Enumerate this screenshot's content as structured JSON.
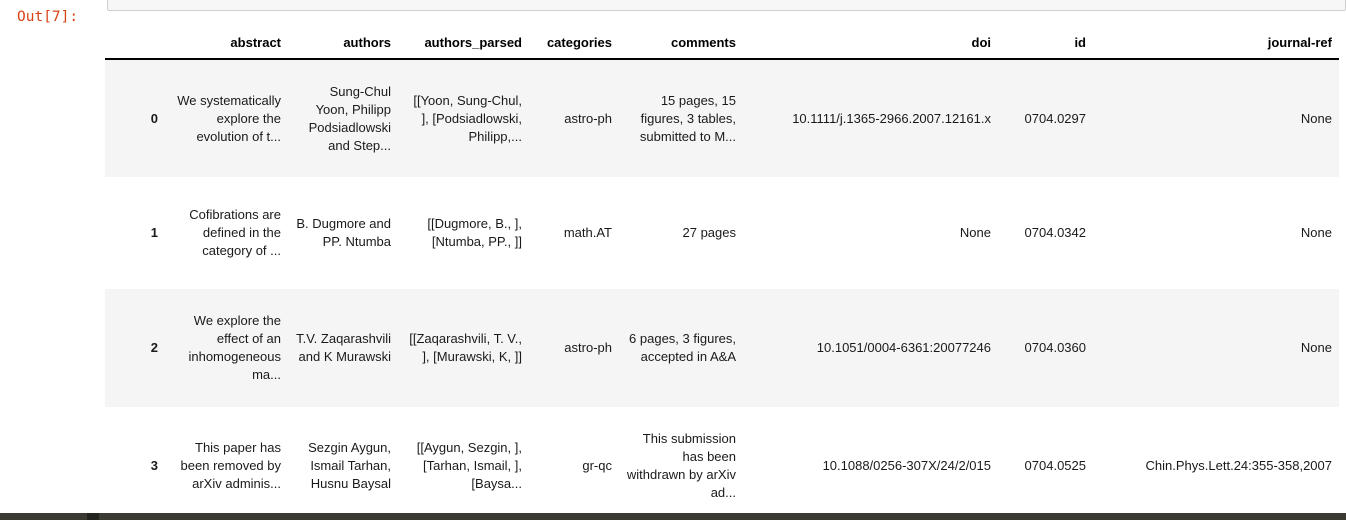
{
  "output_prompt": "Out[7]:",
  "table": {
    "columns": [
      "",
      "abstract",
      "authors",
      "authors_parsed",
      "categories",
      "comments",
      "doi",
      "id",
      "journal-ref"
    ],
    "rows": [
      {
        "index": "0",
        "abstract": "We systematically explore the evolution of t...",
        "authors": "Sung-Chul Yoon, Philipp Podsiadlowski and Step...",
        "authors_parsed": "[[Yoon, Sung-Chul, ], [Podsiadlowski, Philipp,...",
        "categories": "astro-ph",
        "comments": "15 pages, 15 figures, 3 tables, submitted to M...",
        "doi": "10.1111/j.1365-2966.2007.12161.x",
        "id": "0704.0297",
        "journal_ref": "None"
      },
      {
        "index": "1",
        "abstract": "Cofibrations are defined in the category of ...",
        "authors": "B. Dugmore and PP. Ntumba",
        "authors_parsed": "[[Dugmore, B., ], [Ntumba, PP., ]]",
        "categories": "math.AT",
        "comments": "27 pages",
        "doi": "None",
        "id": "0704.0342",
        "journal_ref": "None"
      },
      {
        "index": "2",
        "abstract": "We explore the effect of an inhomogeneous ma...",
        "authors": "T.V. Zaqarashvili and K Murawski",
        "authors_parsed": "[[Zaqarashvili, T. V., ], [Murawski, K, ]]",
        "categories": "astro-ph",
        "comments": "6 pages, 3 figures, accepted in A&A",
        "doi": "10.1051/0004-6361:20077246",
        "id": "0704.0360",
        "journal_ref": "None"
      },
      {
        "index": "3",
        "abstract": "This paper has been removed by arXiv adminis...",
        "authors": "Sezgin Aygun, Ismail Tarhan, Husnu Baysal",
        "authors_parsed": "[[Aygun, Sezgin, ], [Tarhan, Ismail, ], [Baysa...",
        "categories": "gr-qc",
        "comments": "This submission has been withdrawn by arXiv ad...",
        "doi": "10.1088/0256-307X/24/2/015",
        "id": "0704.0525",
        "journal_ref": "Chin.Phys.Lett.24:355-358,2007"
      }
    ]
  },
  "colors": {
    "prompt_text": "#d84315",
    "row_stripe": "#f5f5f5",
    "header_border": "#000000",
    "input_cell_background": "#f7f7f7",
    "input_cell_border": "#cfcfcf",
    "bottom_bar": "#3a3a33"
  }
}
